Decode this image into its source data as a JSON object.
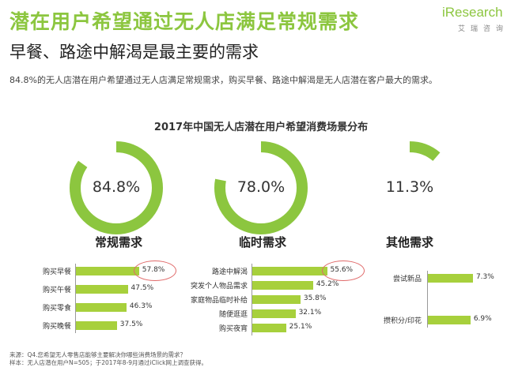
{
  "header": {
    "title": "潜在用户希望通过无人店满足常规需求",
    "subtitle": "早餐、路途中解渴是最主要的需求",
    "description": "84.8%的无人店潜在用户希望通过无人店满足常规需求，购买早餐、路途中解渴是无人店潜在客户最大的需求。",
    "logo_text": "iResearch",
    "logo_cn": "艾瑞咨询"
  },
  "colors": {
    "accent": "#8cc63f",
    "bar": "#a7d03c",
    "highlight": "#e06a6a",
    "track": "#ffffff"
  },
  "chart_data": [
    {
      "type": "pie",
      "title": "2017年中国无人店潜在用户希望消费场景分布",
      "rings": [
        {
          "label": "84.8%",
          "value": 84.8
        },
        {
          "label": "78.0%",
          "value": 78.0
        },
        {
          "label": "11.3%",
          "value": 11.3
        }
      ]
    },
    {
      "type": "bar",
      "title": "常规需求",
      "categories": [
        "购买早餐",
        "购买午餐",
        "购买零食",
        "购买晚餐"
      ],
      "values": [
        57.8,
        47.5,
        46.3,
        37.5
      ],
      "value_labels": [
        "57.8%",
        "47.5%",
        "46.3%",
        "37.5%"
      ],
      "highlighted": [
        0
      ]
    },
    {
      "type": "bar",
      "title": "临时需求",
      "categories": [
        "路途中解渴",
        "突发个人物品需求",
        "家庭物品临时补给",
        "随便逛逛",
        "购买夜宵"
      ],
      "values": [
        55.6,
        45.2,
        35.8,
        32.1,
        25.1
      ],
      "value_labels": [
        "55.6%",
        "45.2%",
        "35.8%",
        "32.1%",
        "25.1%"
      ],
      "highlighted": [
        0
      ]
    },
    {
      "type": "bar",
      "title": "其他需求",
      "categories": [
        "尝试新品",
        "攒积分/印花"
      ],
      "values": [
        7.3,
        6.9
      ],
      "value_labels": [
        "7.3%",
        "6.9%"
      ],
      "highlighted": []
    }
  ],
  "footer": {
    "source_line1": "来源：Q4.您希望无人零售店能够主要解决你哪些消费场景的需求？",
    "source_line2": "样本：无人店潜在用户N=505；于2017年8-9月通过iClick网上调查获得。"
  }
}
